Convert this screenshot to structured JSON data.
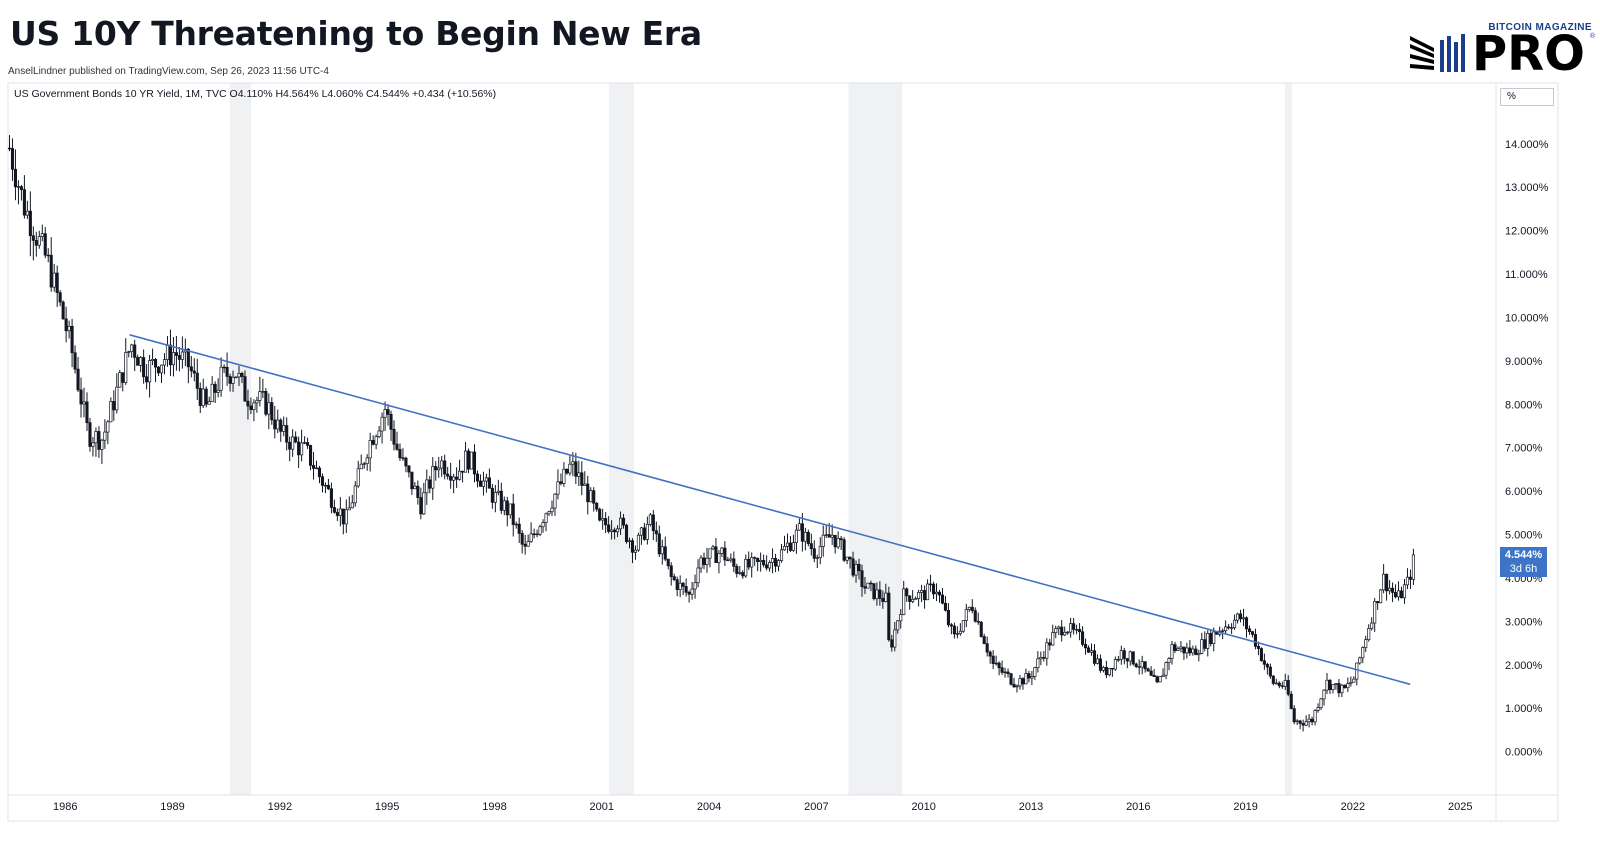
{
  "header": {
    "title": "US 10Y Threatening to Begin New Era",
    "byline": "AnselLindner published on TradingView.com, Sep 26, 2023 11:56 UTC-4"
  },
  "logo": {
    "top": "BITCOIN MAGAZINE",
    "main": "PRO",
    "reg": "®"
  },
  "legend": "US Government Bonds 10 YR Yield, 1M, TVC  O4.110%  H4.564%  L4.060%  C4.544%  +0.434 (+10.56%)",
  "unit_label": "%",
  "last_price": {
    "value": "4.544%",
    "countdown": "3d 6h"
  },
  "colors": {
    "trendline": "#4472c4",
    "recession": "#f0f1f3",
    "candle": "#131722",
    "last_tag": "#3e74c8"
  },
  "chart_data": {
    "type": "candlestick",
    "title": "US 10Y Threatening to Begin New Era",
    "series_name": "US Government Bonds 10 YR Yield, 1M, TVC",
    "ohlc_last": {
      "open": 4.11,
      "high": 4.564,
      "low": 4.06,
      "close": 4.544,
      "change": 0.434,
      "change_pct": 10.56
    },
    "x_tick_labels": [
      "1986",
      "1989",
      "1992",
      "1995",
      "1998",
      "2001",
      "2004",
      "2007",
      "2010",
      "2013",
      "2016",
      "2019",
      "2022",
      "2025"
    ],
    "y_tick_labels": [
      "0.000%",
      "1.000%",
      "2.000%",
      "3.000%",
      "4.000%",
      "5.000%",
      "6.000%",
      "7.000%",
      "8.000%",
      "9.000%",
      "10.000%",
      "11.000%",
      "12.000%",
      "13.000%",
      "14.000%"
    ],
    "xlim": [
      1984.4,
      2026.0
    ],
    "ylim": [
      -1.0,
      15.4
    ],
    "grid": false,
    "recession_bands": [
      [
        1990.6,
        1991.2
      ],
      [
        2001.2,
        2001.9
      ],
      [
        2007.9,
        2009.4
      ],
      [
        2020.1,
        2020.3
      ]
    ],
    "trendline": {
      "start": [
        1987.8,
        9.6
      ],
      "end": [
        2023.6,
        1.55
      ]
    },
    "key_points": [
      [
        1984.4,
        13.9
      ],
      [
        1984.8,
        12.6
      ],
      [
        1985.5,
        11.2
      ],
      [
        1986.1,
        9.4
      ],
      [
        1986.6,
        7.3
      ],
      [
        1987.0,
        7.2
      ],
      [
        1987.4,
        8.3
      ],
      [
        1987.8,
        9.4
      ],
      [
        1988.2,
        8.8
      ],
      [
        1988.6,
        9.0
      ],
      [
        1989.0,
        9.2
      ],
      [
        1989.4,
        8.9
      ],
      [
        1989.9,
        7.9
      ],
      [
        1990.3,
        8.6
      ],
      [
        1990.7,
        8.8
      ],
      [
        1991.0,
        8.2
      ],
      [
        1991.6,
        8.0
      ],
      [
        1992.0,
        7.3
      ],
      [
        1992.7,
        6.9
      ],
      [
        1993.3,
        6.0
      ],
      [
        1993.8,
        5.3
      ],
      [
        1994.4,
        7.0
      ],
      [
        1994.9,
        7.9
      ],
      [
        1995.3,
        6.8
      ],
      [
        1995.9,
        5.7
      ],
      [
        1996.4,
        6.7
      ],
      [
        1996.9,
        6.4
      ],
      [
        1997.2,
        6.8
      ],
      [
        1997.8,
        6.0
      ],
      [
        1998.4,
        5.5
      ],
      [
        1998.8,
        4.6
      ],
      [
        1999.3,
        5.4
      ],
      [
        1999.9,
        6.3
      ],
      [
        2000.1,
        6.6
      ],
      [
        2000.6,
        5.9
      ],
      [
        2000.9,
        5.2
      ],
      [
        2001.4,
        5.3
      ],
      [
        2001.9,
        4.7
      ],
      [
        2002.3,
        5.3
      ],
      [
        2002.9,
        4.0
      ],
      [
        2003.4,
        3.6
      ],
      [
        2003.7,
        4.4
      ],
      [
        2004.3,
        4.6
      ],
      [
        2004.7,
        4.2
      ],
      [
        2005.3,
        4.3
      ],
      [
        2005.9,
        4.5
      ],
      [
        2006.5,
        5.1
      ],
      [
        2006.9,
        4.6
      ],
      [
        2007.4,
        5.0
      ],
      [
        2007.8,
        4.5
      ],
      [
        2008.3,
        3.8
      ],
      [
        2008.9,
        3.5
      ],
      [
        2009.0,
        2.3
      ],
      [
        2009.4,
        3.6
      ],
      [
        2009.9,
        3.6
      ],
      [
        2010.3,
        3.8
      ],
      [
        2010.8,
        2.6
      ],
      [
        2011.3,
        3.4
      ],
      [
        2011.9,
        2.0
      ],
      [
        2012.5,
        1.6
      ],
      [
        2012.9,
        1.7
      ],
      [
        2013.6,
        2.7
      ],
      [
        2013.9,
        2.9
      ],
      [
        2014.5,
        2.5
      ],
      [
        2015.0,
        1.8
      ],
      [
        2015.5,
        2.3
      ],
      [
        2016.0,
        2.0
      ],
      [
        2016.5,
        1.5
      ],
      [
        2016.9,
        2.4
      ],
      [
        2017.5,
        2.3
      ],
      [
        2018.2,
        2.8
      ],
      [
        2018.8,
        3.1
      ],
      [
        2019.2,
        2.6
      ],
      [
        2019.7,
        1.6
      ],
      [
        2020.1,
        1.5
      ],
      [
        2020.3,
        0.7
      ],
      [
        2020.8,
        0.7
      ],
      [
        2021.2,
        1.6
      ],
      [
        2021.7,
        1.4
      ],
      [
        2022.0,
        1.7
      ],
      [
        2022.4,
        2.9
      ],
      [
        2022.8,
        4.0
      ],
      [
        2023.2,
        3.5
      ],
      [
        2023.5,
        3.9
      ],
      [
        2023.7,
        4.544
      ]
    ]
  }
}
